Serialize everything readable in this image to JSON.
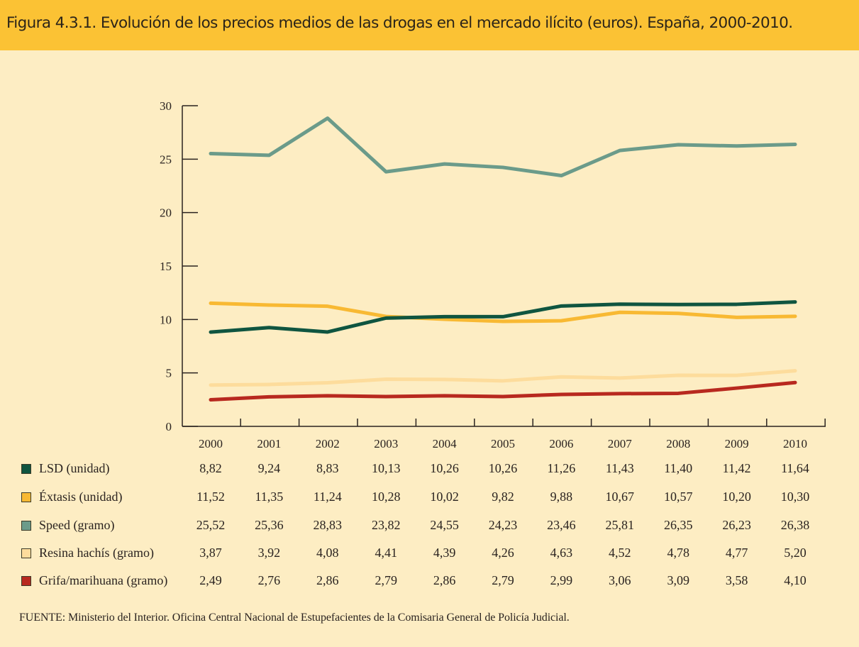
{
  "title": "Figura 4.3.1. Evolución de los precios medios de las drogas en el mercado ilícito (euros). España, 2000-2010.",
  "source": "FUENTE: Ministerio del Interior. Oficina Central Nacional de Estupefacientes de la Comisaria General de Policía Judicial.",
  "chart_data": {
    "type": "line",
    "title": "Figura 4.3.1. Evolución de los precios medios de las drogas en el mercado ilícito (euros). España, 2000-2010.",
    "xlabel": "",
    "ylabel": "",
    "ylim": [
      0,
      30
    ],
    "yticks": [
      0,
      5,
      10,
      15,
      20,
      25,
      30
    ],
    "grid": false,
    "legend": "bottom-table",
    "x": [
      "2000",
      "2001",
      "2002",
      "2003",
      "2004",
      "2005",
      "2006",
      "2007",
      "2008",
      "2009",
      "2010"
    ],
    "series": [
      {
        "name": "LSD (unidad)",
        "color": "#0f5540",
        "values": [
          8.82,
          9.24,
          8.83,
          10.13,
          10.26,
          10.26,
          11.26,
          11.43,
          11.4,
          11.42,
          11.64
        ],
        "labels": [
          "8,82",
          "9,24",
          "8,83",
          "10,13",
          "10,26",
          "10,26",
          "11,26",
          "11,43",
          "11,40",
          "11,42",
          "11,64"
        ]
      },
      {
        "name": "Éxtasis (unidad)",
        "color": "#f8b933",
        "values": [
          11.52,
          11.35,
          11.24,
          10.28,
          10.02,
          9.82,
          9.88,
          10.67,
          10.57,
          10.2,
          10.3
        ],
        "labels": [
          "11,52",
          "11,35",
          "11,24",
          "10,28",
          "10,02",
          "9,82",
          "9,88",
          "10,67",
          "10,57",
          "10,20",
          "10,30"
        ]
      },
      {
        "name": "Speed (gramo)",
        "color": "#6b9b8a",
        "values": [
          25.52,
          25.36,
          28.83,
          23.82,
          24.55,
          24.23,
          23.46,
          25.81,
          26.35,
          26.23,
          26.38
        ],
        "labels": [
          "25,52",
          "25,36",
          "28,83",
          "23,82",
          "24,55",
          "24,23",
          "23,46",
          "25,81",
          "26,35",
          "26,23",
          "26,38"
        ]
      },
      {
        "name": "Resina hachís (gramo)",
        "color": "#fddc9c",
        "values": [
          3.87,
          3.92,
          4.08,
          4.41,
          4.39,
          4.26,
          4.63,
          4.52,
          4.78,
          4.77,
          5.2
        ],
        "labels": [
          "3,87",
          "3,92",
          "4,08",
          "4,41",
          "4,39",
          "4,26",
          "4,63",
          "4,52",
          "4,78",
          "4,77",
          "5,20"
        ]
      },
      {
        "name": "Grifa/marihuana (gramo)",
        "color": "#b8291f",
        "values": [
          2.49,
          2.76,
          2.86,
          2.79,
          2.86,
          2.79,
          2.99,
          3.06,
          3.09,
          3.58,
          4.1
        ],
        "labels": [
          "2,49",
          "2,76",
          "2,86",
          "2,79",
          "2,86",
          "2,79",
          "2,99",
          "3,06",
          "3,09",
          "3,58",
          "4,10"
        ]
      }
    ]
  }
}
